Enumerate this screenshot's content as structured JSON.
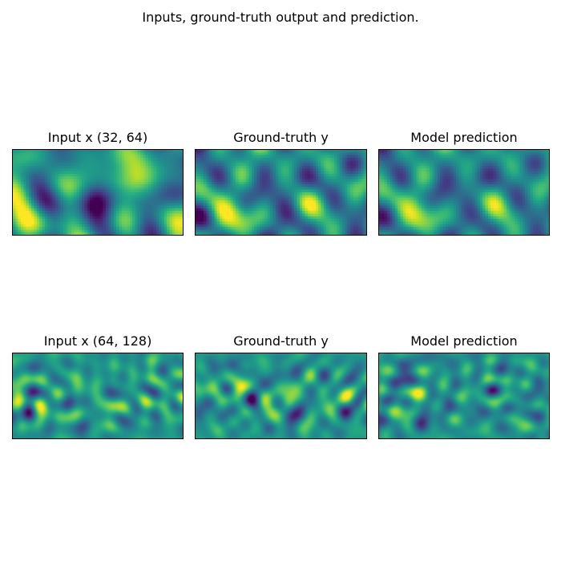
{
  "figure": {
    "suptitle": "Inputs, ground-truth output and prediction."
  },
  "chart_data": [
    {
      "type": "heatmap",
      "title": "Input x (32, 64)",
      "grid_shape": [
        32,
        64
      ],
      "colormap": "viridis",
      "axes_ticks": "none",
      "description_values": "random smooth field"
    },
    {
      "type": "heatmap",
      "title": "Ground-truth y",
      "grid_shape": [
        32,
        64
      ],
      "colormap": "viridis",
      "axes_ticks": "none"
    },
    {
      "type": "heatmap",
      "title": "Model prediction",
      "grid_shape": [
        32,
        64
      ],
      "colormap": "viridis",
      "axes_ticks": "none"
    },
    {
      "type": "heatmap",
      "title": "Input x (64, 128)",
      "grid_shape": [
        64,
        128
      ],
      "colormap": "viridis",
      "axes_ticks": "none"
    },
    {
      "type": "heatmap",
      "title": "Ground-truth y",
      "grid_shape": [
        64,
        128
      ],
      "colormap": "viridis",
      "axes_ticks": "none"
    },
    {
      "type": "heatmap",
      "title": "Model prediction",
      "grid_shape": [
        64,
        128
      ],
      "colormap": "viridis",
      "axes_ticks": "none"
    }
  ]
}
